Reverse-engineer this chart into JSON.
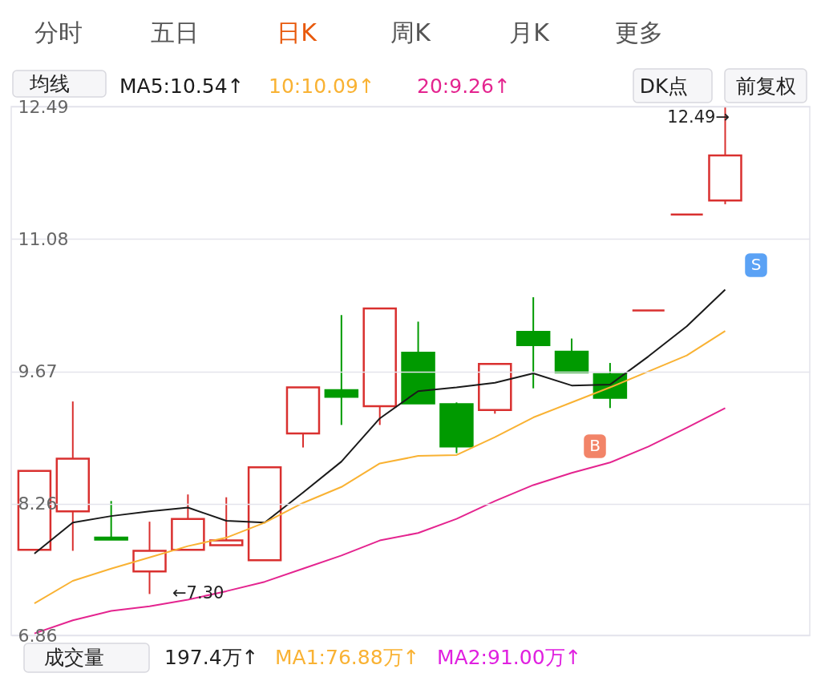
{
  "chart_data": {
    "type": "candlestick",
    "categories": [
      null,
      null,
      null,
      null,
      null,
      null,
      null,
      null,
      null,
      null,
      null,
      null,
      null,
      null,
      null,
      null,
      null,
      null,
      null
    ],
    "ohlc": [
      [
        7.77,
        8.61,
        7.77,
        8.61
      ],
      [
        8.18,
        9.35,
        7.76,
        8.74
      ],
      [
        7.9,
        8.29,
        7.88,
        7.88
      ],
      [
        7.54,
        8.07,
        7.3,
        7.76
      ],
      [
        7.77,
        8.36,
        7.77,
        8.1
      ],
      [
        7.82,
        8.33,
        7.82,
        7.87
      ],
      [
        7.66,
        8.65,
        7.66,
        8.65
      ],
      [
        9.01,
        9.5,
        8.86,
        9.5
      ],
      [
        9.47,
        10.27,
        9.1,
        9.4
      ],
      [
        9.3,
        10.34,
        9.1,
        10.34
      ],
      [
        9.87,
        10.2,
        9.33,
        9.33
      ],
      [
        9.32,
        9.34,
        8.8,
        8.87
      ],
      [
        9.26,
        9.75,
        9.22,
        9.75
      ],
      [
        10.09,
        10.46,
        9.49,
        9.95
      ],
      [
        9.88,
        10.02,
        9.66,
        9.66
      ],
      [
        9.64,
        9.76,
        9.28,
        9.39
      ],
      [
        10.32,
        10.32,
        10.32,
        10.32
      ],
      [
        11.34,
        11.34,
        11.34,
        11.34
      ],
      [
        11.49,
        12.49,
        11.45,
        11.97
      ]
    ],
    "colors": [
      "#d9302f",
      "#d9302f",
      "#009a00",
      "#d9302f",
      "#d9302f",
      "#d9302f",
      "#d9302f",
      "#d9302f",
      "#009a00",
      "#d9302f",
      "#009a00",
      "#009a00",
      "#d9302f",
      "#009a00",
      "#009a00",
      "#009a00",
      "#d9302f",
      "#d9302f",
      "#d9302f"
    ],
    "series": [
      {
        "name": "MA5:10.54↑",
        "type": "line",
        "color": "#1a1a1a",
        "values": [
          7.73,
          8.06,
          8.13,
          8.18,
          8.22,
          8.08,
          8.06,
          8.38,
          8.71,
          9.17,
          9.46,
          9.5,
          9.55,
          9.65,
          9.52,
          9.53,
          9.83,
          10.15,
          10.54
        ]
      },
      {
        "name": "10:10.09↑",
        "type": "line",
        "color": "#f9b233",
        "values": [
          7.2,
          7.44,
          7.57,
          7.69,
          7.81,
          7.9,
          8.06,
          8.27,
          8.44,
          8.69,
          8.77,
          8.78,
          8.97,
          9.18,
          9.34,
          9.5,
          9.67,
          9.84,
          10.1
        ]
      },
      {
        "name": "20:9.26↑",
        "type": "line",
        "color": "#e4248f",
        "values": [
          6.88,
          7.02,
          7.12,
          7.17,
          7.24,
          7.33,
          7.43,
          7.57,
          7.71,
          7.87,
          7.95,
          8.1,
          8.29,
          8.46,
          8.59,
          8.7,
          8.87,
          9.07,
          9.28
        ]
      }
    ],
    "ylim": [
      6.86,
      12.49
    ],
    "yticks": [
      12.49,
      11.08,
      9.67,
      8.26,
      6.86
    ],
    "grid": "y",
    "legend": "top left",
    "line_style": "solid",
    "marker": "none",
    "annotations": [
      "分时",
      "五日",
      "日K",
      "周K",
      "月K",
      "更多",
      "均线",
      "DK点",
      "前复权",
      "12.49→",
      "←7.30",
      "B",
      "S",
      "成交量",
      "197.4万↑",
      "MA1:76.88万↑",
      "MA2:91.00万↑"
    ]
  }
}
